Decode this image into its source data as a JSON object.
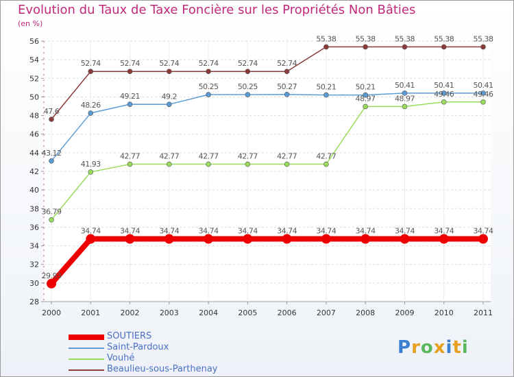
{
  "header": {
    "title": "Evolution du Taux de Taxe Foncière sur les Propriétés Non Bâties",
    "unit": "(en %)"
  },
  "logo": {
    "letters": [
      "P",
      "r",
      "o",
      "x",
      "i",
      "t",
      "i"
    ],
    "colors": [
      "#3a7fd0",
      "#e8a020",
      "#5cb85c",
      "#e8a020",
      "#3a7fd0",
      "#e8a020",
      "#5cb85c"
    ]
  },
  "chart_data": {
    "type": "line",
    "title": "Evolution du Taux de Taxe Foncière sur les Propriétés Non Bâties",
    "ylabel": "(en %)",
    "xlabel": "",
    "x": [
      "2000",
      "2001",
      "2002",
      "2003",
      "2004",
      "2005",
      "2006",
      "2007",
      "2008",
      "2009",
      "2010",
      "2011"
    ],
    "ylim": [
      28,
      56
    ],
    "yticks": [
      28,
      30,
      32,
      34,
      36,
      38,
      40,
      42,
      44,
      46,
      48,
      50,
      52,
      54,
      56
    ],
    "grid": true,
    "legend": "bottom-left",
    "series": [
      {
        "name": "SOUTIERS",
        "color": "#ee0000",
        "values": [
          29.93,
          34.74,
          34.74,
          34.74,
          34.74,
          34.74,
          34.74,
          34.74,
          34.74,
          34.74,
          34.74,
          34.74
        ],
        "labels": [
          "29.93",
          "34.74",
          "34.74",
          "34.74",
          "34.74",
          "34.74",
          "34.74",
          "34.74",
          "34.74",
          "34.74",
          "34.74",
          "34.74"
        ]
      },
      {
        "name": "Saint-Pardoux",
        "color": "#5b9bd5",
        "values": [
          43.12,
          48.26,
          49.21,
          49.2,
          50.25,
          50.25,
          50.27,
          50.21,
          50.21,
          50.41,
          50.41,
          50.41
        ],
        "labels": [
          "43.12",
          "48.26",
          "49.21",
          "49.2",
          "50.25",
          "50.25",
          "50.27",
          "50.21",
          "50.21",
          "50.41",
          "50.41",
          "50.41"
        ]
      },
      {
        "name": "Vouhé",
        "color": "#99d95b",
        "values": [
          36.79,
          41.93,
          42.77,
          42.77,
          42.77,
          42.77,
          42.77,
          42.77,
          48.97,
          48.97,
          49.46,
          49.46
        ],
        "labels": [
          "36.79",
          "41.93",
          "42.77",
          "42.77",
          "42.77",
          "42.77",
          "42.77",
          "42.77",
          "48.97",
          "48.97",
          "49.46",
          "49.46"
        ]
      },
      {
        "name": "Beaulieu-sous-Parthenay",
        "color": "#8b3a3a",
        "values": [
          47.6,
          52.74,
          52.74,
          52.74,
          52.74,
          52.74,
          52.74,
          55.38,
          55.38,
          55.38,
          55.38,
          55.38
        ],
        "labels": [
          "47.6",
          "52.74",
          "52.74",
          "52.74",
          "52.74",
          "52.74",
          "52.74",
          "55.38",
          "55.38",
          "55.38",
          "55.38",
          "55.38"
        ]
      }
    ]
  }
}
